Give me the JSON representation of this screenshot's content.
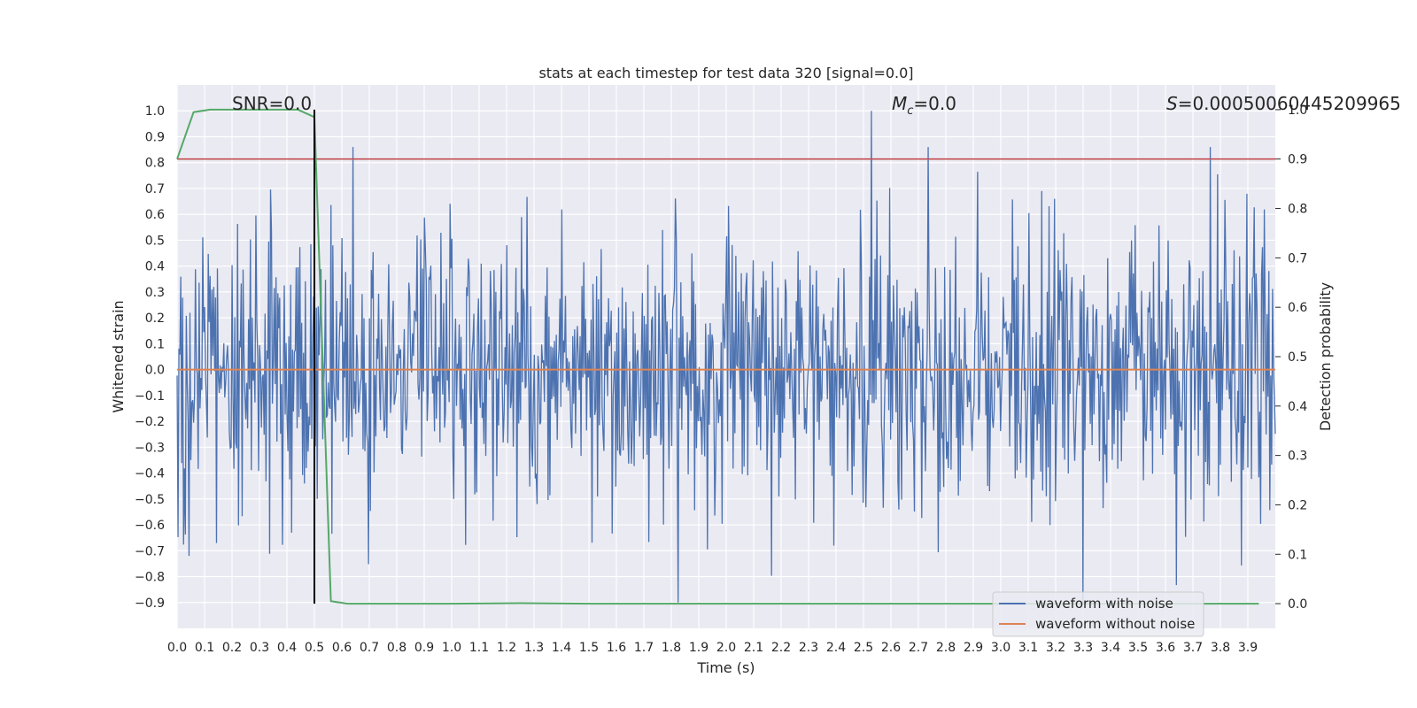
{
  "chart_data": {
    "type": "line",
    "title": "stats at each timestep for test data 320 [signal=0.0]",
    "xlabel": "Time (s)",
    "ylabel_left": "Whitened strain",
    "ylabel_right": "Detection probability",
    "xlim": [
      0.0,
      4.0
    ],
    "ylim_left": [
      -1.0,
      1.1
    ],
    "ylim_right": [
      -0.05,
      1.05
    ],
    "x_ticks": [
      "0.0",
      "0.1",
      "0.2",
      "0.3",
      "0.4",
      "0.5",
      "0.6",
      "0.7",
      "0.8",
      "0.9",
      "1.0",
      "1.1",
      "1.2",
      "1.3",
      "1.4",
      "1.5",
      "1.6",
      "1.7",
      "1.8",
      "1.9",
      "2.0",
      "2.1",
      "2.2",
      "2.3",
      "2.4",
      "2.5",
      "2.6",
      "2.7",
      "2.8",
      "2.9",
      "3.0",
      "3.1",
      "3.2",
      "3.3",
      "3.4",
      "3.5",
      "3.6",
      "3.7",
      "3.8",
      "3.9"
    ],
    "y_left_ticks": [
      "1.0",
      "0.9",
      "0.8",
      "0.7",
      "0.6",
      "0.5",
      "0.4",
      "0.3",
      "0.2",
      "0.1",
      "0.0",
      "−0.1",
      "−0.2",
      "−0.3",
      "−0.4",
      "−0.5",
      "−0.6",
      "−0.7",
      "−0.8",
      "−0.9"
    ],
    "y_right_ticks": [
      "1.0",
      "0.9",
      "0.8",
      "0.7",
      "0.6",
      "0.5",
      "0.4",
      "0.3",
      "0.2",
      "0.1",
      "0.0"
    ],
    "annotations": {
      "snr": "SNR=0.0",
      "mc_symbol": "M",
      "mc_sub": "c",
      "mc_value": "=0.0",
      "s_symbol": "S",
      "s_value": "=0.00050060445209965"
    },
    "legend": {
      "position": "lower-right",
      "entries": [
        "waveform with noise",
        "waveform without noise"
      ]
    },
    "series": [
      {
        "name": "waveform with noise",
        "color": "#4c72b0",
        "axis": "left",
        "description": "whitened noisy strain, approx. amplitude range -0.9 to 1.0",
        "seed": 320,
        "n_points": 1200
      },
      {
        "name": "waveform without noise",
        "color": "#dd8452",
        "axis": "left",
        "values_constant": 0.0
      },
      {
        "name": "detection probability",
        "color": "#55a868",
        "axis": "right",
        "x": [
          0.0,
          0.06,
          0.12,
          0.19,
          0.25,
          0.31,
          0.38,
          0.44,
          0.5,
          0.56,
          0.62,
          0.69,
          1.0,
          1.25,
          1.5,
          2.0,
          2.5,
          3.0,
          3.5,
          3.94
        ],
        "values": [
          0.9,
          0.995,
          1.0,
          1.0,
          1.0,
          1.0,
          1.0,
          1.0,
          0.985,
          0.005,
          0.0,
          0.0,
          0.0,
          0.001,
          0.0,
          0.0,
          0.0,
          0.0,
          0.0,
          0.0
        ]
      },
      {
        "name": "threshold",
        "color": "#c44e52",
        "axis": "right",
        "values_constant": 0.9
      }
    ],
    "vertical_line": {
      "x": 0.5,
      "color": "#000000",
      "y_range_right": [
        0.0,
        1.0
      ]
    }
  }
}
